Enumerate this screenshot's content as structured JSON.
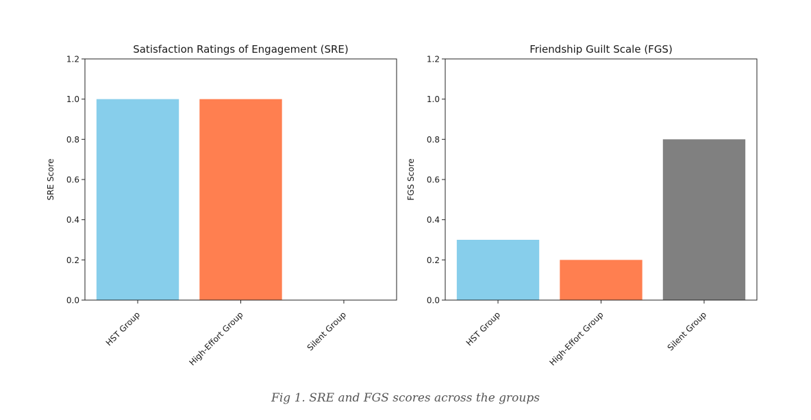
{
  "chart_data": [
    {
      "type": "bar",
      "title": "Satisfaction Ratings of Engagement (SRE)",
      "xlabel": "",
      "ylabel": "SRE Score",
      "categories": [
        "HST Group",
        "High-Effort Group",
        "Silent Group"
      ],
      "values": [
        1.0,
        1.0,
        0.0
      ],
      "colors": [
        "#87ceeb",
        "#ff7f50",
        "#808080"
      ],
      "ylim": [
        0,
        1.2
      ],
      "yticks": [
        "0.0",
        "0.2",
        "0.4",
        "0.6",
        "0.8",
        "1.0",
        "1.2"
      ],
      "grid": false,
      "legend": "none"
    },
    {
      "type": "bar",
      "title": "Friendship Guilt Scale (FGS)",
      "xlabel": "",
      "ylabel": "FGS Score",
      "categories": [
        "HST Group",
        "High-Effort Group",
        "Silent Group"
      ],
      "values": [
        0.3,
        0.2,
        0.8
      ],
      "colors": [
        "#87ceeb",
        "#ff7f50",
        "#808080"
      ],
      "ylim": [
        0,
        1.2
      ],
      "yticks": [
        "0.0",
        "0.2",
        "0.4",
        "0.6",
        "0.8",
        "1.0",
        "1.2"
      ],
      "grid": false,
      "legend": "none"
    }
  ],
  "caption": "Fig 1. SRE and FGS scores across the groups"
}
